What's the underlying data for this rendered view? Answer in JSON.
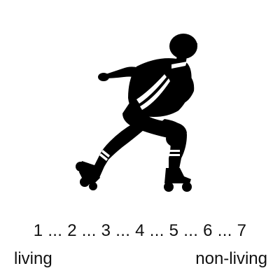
{
  "image": {
    "icon": "roller-skater-silhouette",
    "color": "#000000"
  },
  "scale": {
    "text": "1 ... 2 ... 3 ... 4 ... 5 ... 6 ... 7",
    "left_anchor": "living",
    "right_anchor": "non-living"
  }
}
